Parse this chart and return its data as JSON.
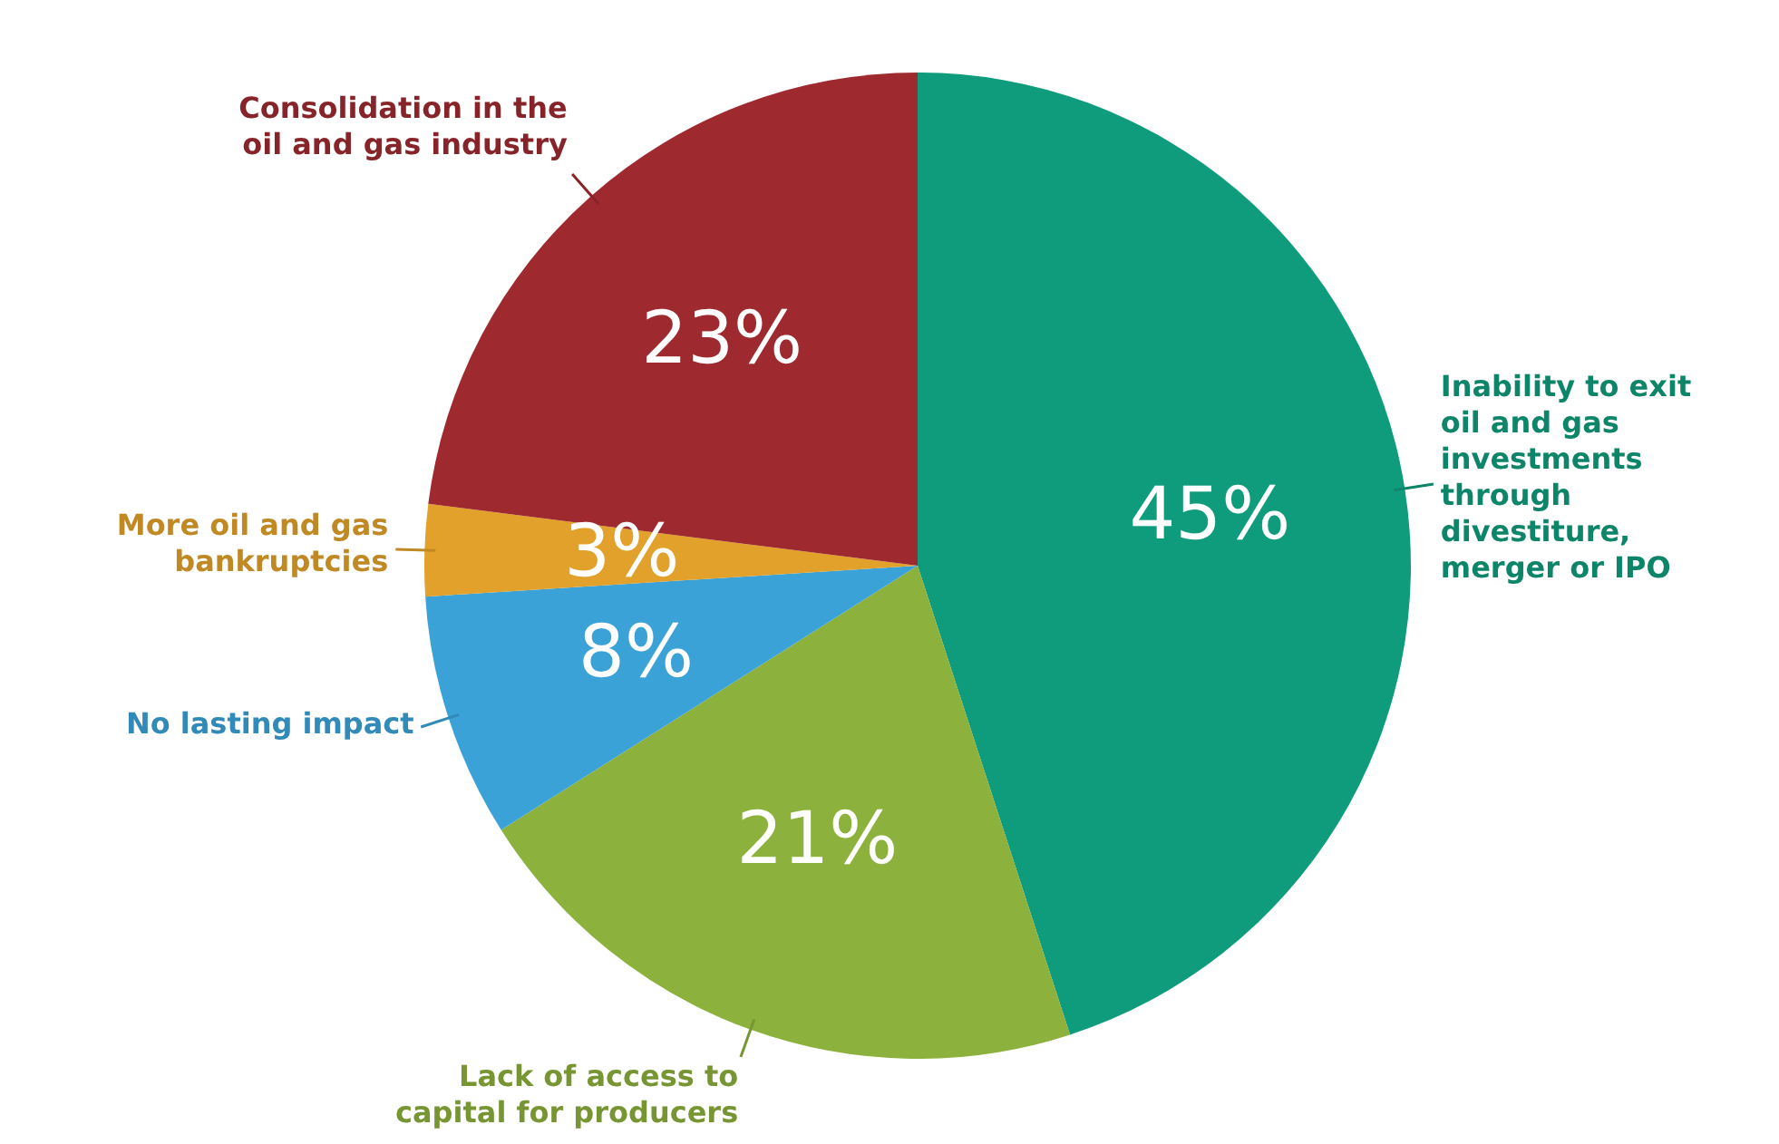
{
  "chart_data": {
    "type": "pie",
    "categories": [
      "Inability to exit oil and gas investments through divestiture, merger or IPO",
      "Lack of access to capital for producers",
      "No lasting impact",
      "More oil and gas bankruptcies",
      "Consolidation in the oil and gas industry"
    ],
    "values": [
      45,
      21,
      8,
      3,
      23
    ],
    "value_labels": [
      "45%",
      "21%",
      "8%",
      "3%",
      "23%"
    ],
    "colors": [
      "#0f9c7c",
      "#8cb13c",
      "#3ba2d8",
      "#e2a12a",
      "#9e2a30"
    ],
    "legend": false
  }
}
